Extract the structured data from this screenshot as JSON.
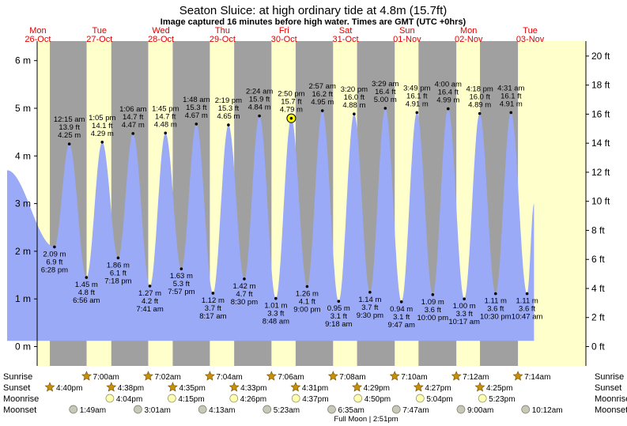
{
  "title": "Seaton Sluice: at high  ordinary tide at 4.8m (15.7ft)",
  "subtitle": "Image captured 16 minutes before high water. Times are GMT (UTC +0hrs)",
  "days": [
    {
      "dow": "Mon",
      "date": "26-Oct"
    },
    {
      "dow": "Tue",
      "date": "27-Oct"
    },
    {
      "dow": "Wed",
      "date": "28-Oct"
    },
    {
      "dow": "Thu",
      "date": "29-Oct"
    },
    {
      "dow": "Fri",
      "date": "30-Oct"
    },
    {
      "dow": "Sat",
      "date": "31-Oct"
    },
    {
      "dow": "Sun",
      "date": "01-Nov"
    },
    {
      "dow": "Mon",
      "date": "02-Nov"
    },
    {
      "dow": "Tue",
      "date": "03-Nov"
    }
  ],
  "chart_data": {
    "type": "area",
    "title": "Seaton Sluice: at high  ordinary tide at 4.8m (15.7ft)",
    "y_left_label_unit": "m",
    "y_right_label_unit": "ft",
    "ylim_m": [
      -0.3,
      6.3
    ],
    "yticks_m": [
      0,
      1,
      2,
      3,
      4,
      5,
      6
    ],
    "yticks_ft": [
      0,
      2,
      4,
      6,
      8,
      10,
      12,
      14,
      16,
      18,
      20
    ],
    "start": {
      "day": 0,
      "time": "00:00",
      "height_m": 3.7
    },
    "end": {
      "day": 8,
      "time": "13:30",
      "height_m": 3.0
    },
    "tides": [
      {
        "type": "low",
        "day": 0,
        "time": "6:28 pm",
        "m": "2.09 m",
        "ft": "6.9 ft"
      },
      {
        "type": "high",
        "day": 1,
        "time": "12:15 am",
        "m": "4.25 m",
        "ft": "13.9 ft"
      },
      {
        "type": "low",
        "day": 1,
        "time": "6:56 am",
        "m": "1.45 m",
        "ft": "4.8 ft"
      },
      {
        "type": "high",
        "day": 1,
        "time": "1:05 pm",
        "m": "4.29 m",
        "ft": "14.1 ft"
      },
      {
        "type": "low",
        "day": 1,
        "time": "7:18 pm",
        "m": "1.86 m",
        "ft": "6.1 ft"
      },
      {
        "type": "high",
        "day": 2,
        "time": "1:06 am",
        "m": "4.47 m",
        "ft": "14.7 ft"
      },
      {
        "type": "low",
        "day": 2,
        "time": "7:41 am",
        "m": "1.27 m",
        "ft": "4.2 ft"
      },
      {
        "type": "high",
        "day": 2,
        "time": "1:45 pm",
        "m": "4.48 m",
        "ft": "14.7 ft"
      },
      {
        "type": "low",
        "day": 2,
        "time": "7:57 pm",
        "m": "1.63 m",
        "ft": "5.3 ft"
      },
      {
        "type": "high",
        "day": 3,
        "time": "1:48 am",
        "m": "4.67 m",
        "ft": "15.3 ft"
      },
      {
        "type": "low",
        "day": 3,
        "time": "8:17 am",
        "m": "1.12 m",
        "ft": "3.7 ft"
      },
      {
        "type": "high",
        "day": 3,
        "time": "2:19 pm",
        "m": "4.65 m",
        "ft": "15.3 ft"
      },
      {
        "type": "low",
        "day": 3,
        "time": "8:30 pm",
        "m": "1.42 m",
        "ft": "4.7 ft"
      },
      {
        "type": "high",
        "day": 4,
        "time": "2:24 am",
        "m": "4.84 m",
        "ft": "15.9 ft"
      },
      {
        "type": "low",
        "day": 4,
        "time": "8:48 am",
        "m": "1.01 m",
        "ft": "3.3 ft"
      },
      {
        "type": "high",
        "day": 4,
        "time": "2:50 pm",
        "m": "4.79 m",
        "ft": "15.7 ft",
        "current": true
      },
      {
        "type": "low",
        "day": 4,
        "time": "9:00 pm",
        "m": "1.26 m",
        "ft": "4.1 ft"
      },
      {
        "type": "high",
        "day": 5,
        "time": "2:57 am",
        "m": "4.95 m",
        "ft": "16.2 ft"
      },
      {
        "type": "low",
        "day": 5,
        "time": "9:18 am",
        "m": "0.95 m",
        "ft": "3.1 ft"
      },
      {
        "type": "high",
        "day": 5,
        "time": "3:20 pm",
        "m": "4.88 m",
        "ft": "16.0 ft"
      },
      {
        "type": "low",
        "day": 5,
        "time": "9:30 pm",
        "m": "1.14 m",
        "ft": "3.7 ft"
      },
      {
        "type": "high",
        "day": 6,
        "time": "3:29 am",
        "m": "5.00 m",
        "ft": "16.4 ft"
      },
      {
        "type": "low",
        "day": 6,
        "time": "9:47 am",
        "m": "0.94 m",
        "ft": "3.1 ft"
      },
      {
        "type": "high",
        "day": 6,
        "time": "3:49 pm",
        "m": "4.91 m",
        "ft": "16.1 ft"
      },
      {
        "type": "low",
        "day": 6,
        "time": "10:00 pm",
        "m": "1.09 m",
        "ft": "3.6 ft"
      },
      {
        "type": "high",
        "day": 7,
        "time": "4:00 am",
        "m": "4.99 m",
        "ft": "16.4 ft"
      },
      {
        "type": "low",
        "day": 7,
        "time": "10:17 am",
        "m": "1.00 m",
        "ft": "3.3 ft"
      },
      {
        "type": "high",
        "day": 7,
        "time": "4:18 pm",
        "m": "4.89 m",
        "ft": "16.0 ft"
      },
      {
        "type": "low",
        "day": 7,
        "time": "10:30 pm",
        "m": "1.11 m",
        "ft": "3.6 ft"
      },
      {
        "type": "high",
        "day": 8,
        "time": "4:31 am",
        "m": "4.91 m",
        "ft": "16.1 ft"
      },
      {
        "type": "low",
        "day": 8,
        "time": "10:47 am",
        "m": "1.11 m",
        "ft": "3.6 ft"
      }
    ],
    "night_periods": [
      [
        "0:16:40",
        "1:07:00"
      ],
      [
        "1:16:38",
        "2:07:02"
      ],
      [
        "2:16:35",
        "3:07:04"
      ],
      [
        "3:16:33",
        "4:07:06"
      ],
      [
        "4:16:31",
        "5:07:08"
      ],
      [
        "5:16:29",
        "6:07:10"
      ],
      [
        "6:16:27",
        "7:07:12"
      ],
      [
        "7:16:25",
        "8:07:14"
      ]
    ],
    "row_labels": {
      "sunrise": "Sunrise",
      "sunset": "Sunset",
      "moonrise": "Moonrise",
      "moonset": "Moonset"
    },
    "sunrise": [
      {
        "day": 1,
        "time": "7:00am"
      },
      {
        "day": 2,
        "time": "7:02am"
      },
      {
        "day": 3,
        "time": "7:04am"
      },
      {
        "day": 4,
        "time": "7:06am"
      },
      {
        "day": 5,
        "time": "7:08am"
      },
      {
        "day": 6,
        "time": "7:10am"
      },
      {
        "day": 7,
        "time": "7:12am"
      },
      {
        "day": 8,
        "time": "7:14am"
      }
    ],
    "sunset": [
      {
        "day": 0,
        "time": "4:40pm"
      },
      {
        "day": 1,
        "time": "4:38pm"
      },
      {
        "day": 2,
        "time": "4:35pm"
      },
      {
        "day": 3,
        "time": "4:33pm"
      },
      {
        "day": 4,
        "time": "4:31pm"
      },
      {
        "day": 5,
        "time": "4:29pm"
      },
      {
        "day": 6,
        "time": "4:27pm"
      },
      {
        "day": 7,
        "time": "4:25pm"
      }
    ],
    "moonrise": [
      {
        "day": 1,
        "time": "4:04pm"
      },
      {
        "day": 2,
        "time": "4:15pm"
      },
      {
        "day": 3,
        "time": "4:26pm"
      },
      {
        "day": 4,
        "time": "4:37pm"
      },
      {
        "day": 5,
        "time": "4:50pm"
      },
      {
        "day": 6,
        "time": "5:04pm"
      },
      {
        "day": 7,
        "time": "5:23pm"
      }
    ],
    "moonset": [
      {
        "day": 1,
        "time": "1:49am"
      },
      {
        "day": 2,
        "time": "3:01am"
      },
      {
        "day": 3,
        "time": "4:13am"
      },
      {
        "day": 4,
        "time": "5:23am"
      },
      {
        "day": 5,
        "time": "6:35am"
      },
      {
        "day": 6,
        "time": "7:47am"
      },
      {
        "day": 7,
        "time": "9:00am"
      },
      {
        "day": 8,
        "time": "10:12am"
      }
    ],
    "full_moon": {
      "label": "Full Moon",
      "time": "2:51pm"
    }
  },
  "colors": {
    "day_bg": "#ffffcc",
    "night_bg": "#a0a0a0",
    "water": "#9aaaf6",
    "day_header": "#e00000",
    "title": "#000000",
    "sun": "#c8900a",
    "moon": "#ffffb0",
    "moonset": "#c8c8b8"
  }
}
